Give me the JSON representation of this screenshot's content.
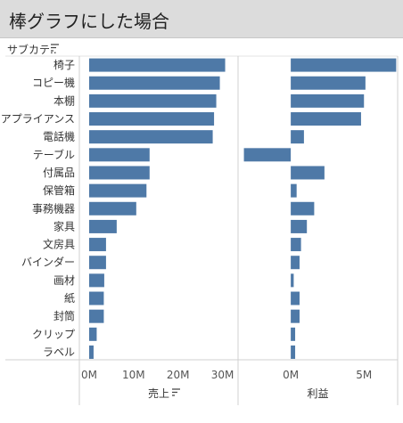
{
  "title": "棒グラフにした場合",
  "chart_data": {
    "type": "bar",
    "orientation": "horizontal",
    "row_header": "サブカテ..",
    "categories": [
      "椅子",
      "コピー機",
      "本棚",
      "アプライアンス",
      "電話機",
      "テーブル",
      "付属品",
      "保管箱",
      "事務機器",
      "家具",
      "文房具",
      "バインダー",
      "画材",
      "紙",
      "封筒",
      "クリップ",
      "ラベル"
    ],
    "panels": [
      {
        "name": "売上",
        "xlabel": "売上",
        "unit": "M",
        "xlim": [
          -2.2,
          33.5
        ],
        "ticks": [
          0,
          10,
          20,
          30
        ],
        "tick_labels": [
          "0M",
          "10M",
          "20M",
          "30M"
        ],
        "values": [
          30.6,
          29.4,
          28.6,
          28.1,
          27.8,
          13.6,
          13.6,
          12.9,
          10.6,
          6.2,
          3.8,
          3.8,
          3.4,
          3.3,
          3.3,
          1.7,
          1.0
        ]
      },
      {
        "name": "利益",
        "xlabel": "利益",
        "unit": "M",
        "xlim": [
          -3.6,
          7.3
        ],
        "ticks": [
          0,
          5
        ],
        "tick_labels": [
          "0M",
          "5M"
        ],
        "values": [
          7.2,
          5.1,
          5.0,
          4.8,
          0.9,
          -3.2,
          2.3,
          0.4,
          1.6,
          1.1,
          0.7,
          0.6,
          0.2,
          0.6,
          0.6,
          0.3,
          0.3
        ]
      }
    ],
    "bar_color": "#4e79a7",
    "grid": false
  }
}
